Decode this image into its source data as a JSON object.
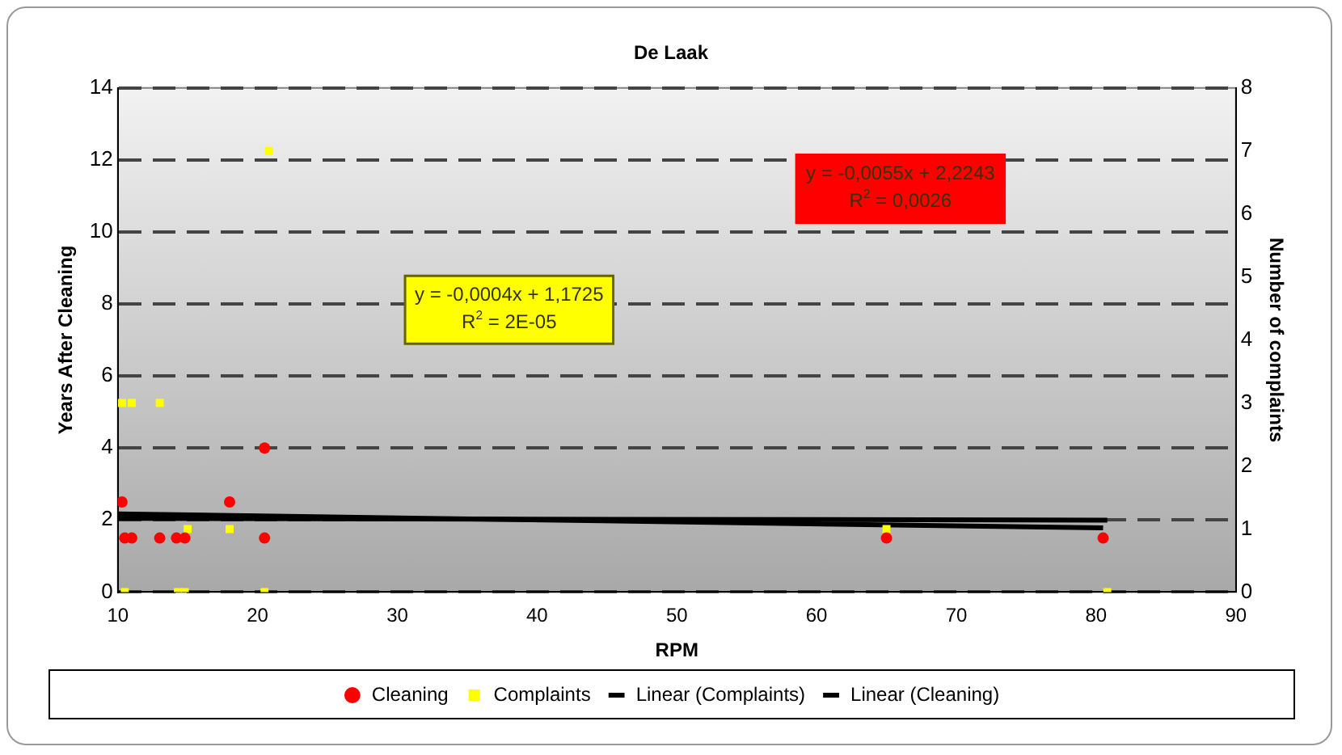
{
  "chart_data": {
    "type": "scatter",
    "title": "De Laak",
    "xlabel": "RPM",
    "ylabel": "Years After Cleaning",
    "y2label": "Number of complaints",
    "series": [
      {
        "name": "Cleaning",
        "marker": "circle",
        "color": "#ff0000",
        "x": [
          10.3,
          10.5,
          11,
          13,
          14.2,
          14.8,
          18,
          20.5,
          20.5,
          65,
          80.5
        ],
        "values": [
          2.5,
          1.5,
          1.5,
          1.5,
          1.5,
          1.5,
          2.5,
          4,
          1.5,
          1.5,
          1.5
        ]
      },
      {
        "name": "Complaints",
        "marker": "square",
        "axis": "y2",
        "color": "#ffff00",
        "x": [
          10.3,
          11,
          13,
          10.5,
          14.3,
          14.8,
          15,
          18,
          20.8,
          20.5,
          65,
          80.8
        ],
        "values": [
          3,
          3,
          3,
          0,
          0,
          0,
          1,
          1,
          7,
          0,
          1,
          0
        ]
      },
      {
        "name": "Linear (Complaints)",
        "type": "line",
        "marker": "none",
        "axis": "y2",
        "color": "#000000",
        "x": [
          10,
          80.8
        ],
        "values": [
          1.17,
          1.14
        ]
      },
      {
        "name": "Linear (Cleaning)",
        "type": "line",
        "marker": "none",
        "color": "#000000",
        "x": [
          10,
          80.5
        ],
        "values": [
          2.17,
          1.78
        ]
      }
    ],
    "xlim": [
      10,
      90
    ],
    "xticks": [
      10,
      20,
      30,
      40,
      50,
      60,
      70,
      80,
      90
    ],
    "ylim": [
      0,
      14
    ],
    "yticks": [
      0,
      2,
      4,
      6,
      8,
      10,
      12,
      14
    ],
    "y2lim": [
      0,
      8
    ],
    "y2ticks": [
      0,
      1,
      2,
      3,
      4,
      5,
      6,
      7,
      8
    ],
    "grid": "y",
    "legend": "bottom",
    "annotations": [
      "y = -0,0055x + 2,2243",
      "R$^{2}$ = 0,0026",
      "y = -0,0004x + 1,1725",
      "R$^{2}$ = 2E-05"
    ]
  }
}
